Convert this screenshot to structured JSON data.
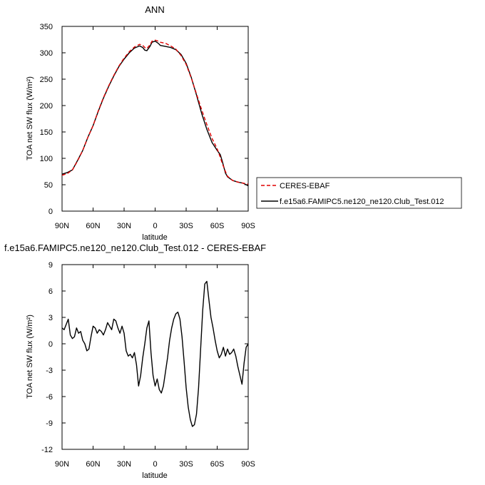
{
  "chart_data": [
    {
      "type": "line",
      "title": "ANN",
      "xlabel": "latitude",
      "ylabel": "TOA net SW flux (W/m²)",
      "x_ticks": [
        {
          "v": 90,
          "label": "90N"
        },
        {
          "v": 60,
          "label": "60N"
        },
        {
          "v": 30,
          "label": "30N"
        },
        {
          "v": 0,
          "label": "0"
        },
        {
          "v": -30,
          "label": "30S"
        },
        {
          "v": -60,
          "label": "60S"
        },
        {
          "v": -90,
          "label": "90S"
        }
      ],
      "y_ticks": [
        0,
        50,
        100,
        150,
        200,
        250,
        300,
        350
      ],
      "xlim": [
        90,
        -90
      ],
      "ylim": [
        0,
        350
      ],
      "legend": {
        "placement": "right",
        "entries": [
          "CERES-EBAF",
          "f.e15a6.FAMIPC5.ne120_ne120.Club_Test.012"
        ]
      },
      "series": [
        {
          "name": "CERES-EBAF",
          "color": "#e00000",
          "dash": true,
          "x": [
            90,
            85,
            80,
            75,
            70,
            65,
            60,
            55,
            50,
            45,
            40,
            35,
            30,
            25,
            20,
            15,
            12,
            10,
            8,
            5,
            3,
            0,
            -3,
            -5,
            -10,
            -15,
            -20,
            -25,
            -30,
            -35,
            -40,
            -45,
            -50,
            -55,
            -60,
            -63,
            -65,
            -68,
            -70,
            -75,
            -80,
            -85,
            -90
          ],
          "y": [
            68,
            71,
            78,
            95,
            115,
            140,
            162,
            190,
            215,
            237,
            257,
            275,
            290,
            302,
            311,
            316,
            314,
            310,
            308,
            315,
            322,
            324,
            322,
            320,
            318,
            313,
            307,
            295,
            278,
            252,
            222,
            192,
            164,
            138,
            118,
            102,
            90,
            75,
            66,
            58,
            55,
            53,
            51
          ]
        },
        {
          "name": "f.e15a6.FAMIPC5.ne120_ne120.Club_Test.012",
          "color": "#000000",
          "dash": false,
          "x": [
            90,
            85,
            80,
            75,
            70,
            65,
            60,
            55,
            50,
            45,
            40,
            35,
            30,
            25,
            20,
            15,
            12,
            10,
            8,
            5,
            3,
            0,
            -3,
            -5,
            -10,
            -15,
            -20,
            -25,
            -30,
            -35,
            -40,
            -45,
            -50,
            -55,
            -60,
            -63,
            -65,
            -68,
            -70,
            -75,
            -80,
            -85,
            -90
          ],
          "y": [
            70,
            73,
            78,
            96,
            115,
            140,
            162,
            189,
            214,
            236,
            256,
            274,
            288,
            300,
            309,
            313,
            310,
            305,
            304,
            312,
            320,
            322,
            318,
            314,
            312,
            310,
            306,
            297,
            280,
            253,
            220,
            185,
            155,
            130,
            115,
            107,
            94,
            72,
            65,
            58,
            55,
            53,
            48
          ]
        }
      ]
    },
    {
      "type": "line",
      "title": "f.e15a6.FAMIPC5.ne120_ne120.Club_Test.012 - CERES-EBAF",
      "xlabel": "latitude",
      "ylabel": "TOA net SW flux (W/m²)",
      "x_ticks": [
        {
          "v": 90,
          "label": "90N"
        },
        {
          "v": 60,
          "label": "60N"
        },
        {
          "v": 30,
          "label": "30N"
        },
        {
          "v": 0,
          "label": "0"
        },
        {
          "v": -30,
          "label": "30S"
        },
        {
          "v": -60,
          "label": "60S"
        },
        {
          "v": -90,
          "label": "90S"
        }
      ],
      "y_ticks": [
        -12,
        -9,
        -6,
        -3,
        0,
        3,
        6,
        9
      ],
      "xlim": [
        90,
        -90
      ],
      "ylim": [
        -12,
        9
      ],
      "series": [
        {
          "name": "",
          "color": "#000000",
          "dash": false,
          "x": [
            90,
            88,
            86,
            84,
            82,
            80,
            78,
            76,
            74,
            72,
            70,
            68,
            66,
            64,
            62,
            60,
            58,
            56,
            54,
            52,
            50,
            48,
            46,
            44,
            42,
            40,
            38,
            36,
            34,
            32,
            30,
            28,
            26,
            24,
            22,
            20,
            18,
            16,
            14,
            12,
            10,
            8,
            6,
            4,
            2,
            0,
            -2,
            -4,
            -6,
            -8,
            -10,
            -12,
            -14,
            -16,
            -18,
            -20,
            -22,
            -24,
            -26,
            -28,
            -30,
            -32,
            -34,
            -36,
            -38,
            -40,
            -42,
            -44,
            -46,
            -48,
            -50,
            -52,
            -54,
            -56,
            -58,
            -60,
            -62,
            -64,
            -66,
            -68,
            -70,
            -72,
            -74,
            -76,
            -78,
            -80,
            -82,
            -84,
            -86,
            -88,
            -90
          ],
          "y": [
            1.8,
            1.6,
            2.2,
            2.8,
            1.0,
            0.6,
            0.8,
            1.8,
            1.2,
            1.4,
            0.4,
            0.0,
            -0.8,
            -0.6,
            0.8,
            2.0,
            1.8,
            1.2,
            1.6,
            1.4,
            1.0,
            1.6,
            2.4,
            2.0,
            1.6,
            2.8,
            2.6,
            1.8,
            1.2,
            2.0,
            1.2,
            -0.8,
            -1.4,
            -1.2,
            -1.6,
            -1.0,
            -2.4,
            -4.8,
            -3.6,
            -1.6,
            0.0,
            1.8,
            2.6,
            -1.0,
            -3.6,
            -4.8,
            -4.0,
            -5.2,
            -5.6,
            -4.8,
            -3.2,
            -1.6,
            0.4,
            1.8,
            2.8,
            3.4,
            3.6,
            2.8,
            0.8,
            -2.0,
            -5.0,
            -7.2,
            -8.6,
            -9.4,
            -9.2,
            -8.0,
            -5.0,
            -0.6,
            3.8,
            6.8,
            7.1,
            5.0,
            3.0,
            1.8,
            0.4,
            -0.8,
            -1.6,
            -1.2,
            -0.4,
            -1.4,
            -0.6,
            -1.2,
            -1.0,
            -0.6,
            -1.4,
            -2.6,
            -3.6,
            -4.6,
            -2.2,
            -0.4,
            0.0
          ]
        }
      ]
    }
  ]
}
